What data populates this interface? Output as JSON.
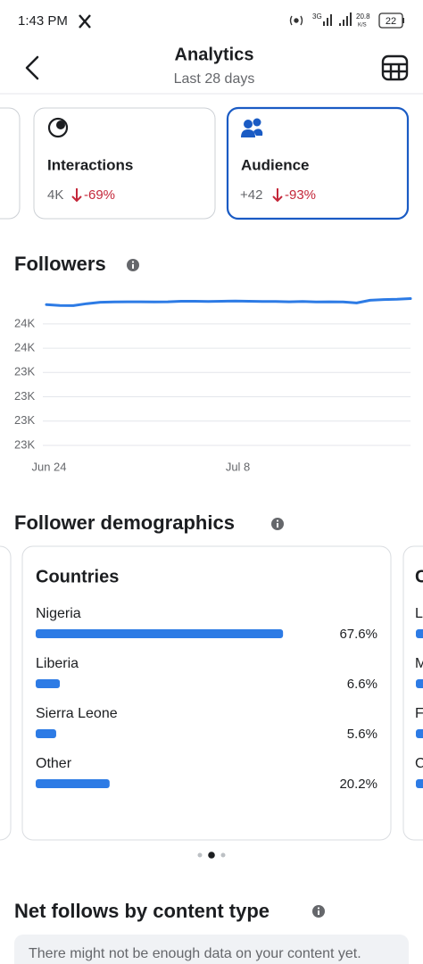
{
  "status_bar": {
    "time": "1:43 PM",
    "network": "3G",
    "speed": "20.8",
    "speed_unit": "K/S",
    "battery": "22"
  },
  "header": {
    "title": "Analytics",
    "subtitle": "Last 28 days"
  },
  "cards": [
    {
      "label": "Interactions",
      "value": "4K",
      "change": "-69%"
    },
    {
      "label": "Audience",
      "value": "+42",
      "change": "-93%"
    }
  ],
  "chart_data": {
    "type": "line",
    "title": "Followers",
    "color": "#2d7be5",
    "grid": true,
    "categories": [
      "Jun 24",
      null,
      null,
      null,
      null,
      null,
      null,
      null,
      null,
      null,
      null,
      null,
      null,
      null,
      "Jul 8",
      null,
      null,
      null,
      null,
      null,
      null,
      null,
      null,
      null,
      null,
      null,
      null,
      null
    ],
    "values": [
      23679,
      23676,
      23675,
      23683,
      23689,
      23690,
      23691,
      23691,
      23690,
      23691,
      23693,
      23693,
      23692,
      23693,
      23694,
      23693,
      23692,
      23692,
      23691,
      23692,
      23690,
      23691,
      23690,
      23686,
      23697,
      23700,
      23701,
      23704
    ],
    "ylim": [
      23100,
      23750
    ],
    "yticks": [
      {
        "value": 23100,
        "label": "23K"
      },
      {
        "value": 23200,
        "label": "23K"
      },
      {
        "value": 23300,
        "label": "23K"
      },
      {
        "value": 23400,
        "label": "23K"
      },
      {
        "value": 23500,
        "label": "24K"
      },
      {
        "value": 23600,
        "label": "24K"
      }
    ]
  },
  "demographics": {
    "title": "Follower demographics",
    "card": {
      "title": "Countries",
      "color": "#2d7be5",
      "categories": [
        "Nigeria",
        "Liberia",
        "Sierra Leone",
        "Other"
      ],
      "values": [
        67.6,
        6.6,
        5.6,
        20.2
      ],
      "value_labels": [
        "67.6%",
        "6.6%",
        "5.6%",
        "20.2%"
      ]
    },
    "next_card": {
      "title": "C",
      "rows": [
        "L",
        "M",
        "F",
        "C"
      ]
    }
  },
  "net_follows": {
    "title": "Net follows by content type",
    "message": "There might not be enough data on your content yet."
  }
}
